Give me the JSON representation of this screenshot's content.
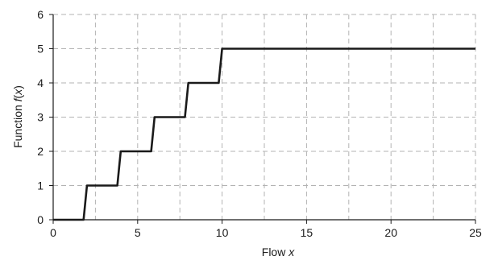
{
  "chart_data": {
    "type": "line",
    "xlabel": "Flow x",
    "ylabel": "Function f(x)",
    "xlabel_parts": {
      "text": "Flow ",
      "var": "x"
    },
    "ylabel_parts": {
      "text": "Function ",
      "var": "f",
      "paren_open": "(",
      "arg": "x",
      "paren_close": ")"
    },
    "xlim": [
      0,
      25
    ],
    "ylim": [
      0,
      6
    ],
    "xticks": [
      0,
      5,
      10,
      15,
      20,
      25
    ],
    "yticks": [
      0,
      1,
      2,
      3,
      4,
      5,
      6
    ],
    "x_grid": [
      0,
      2.5,
      5,
      7.5,
      10,
      12.5,
      15,
      17.5,
      20,
      22.5,
      25
    ],
    "grid": true,
    "grid_style": "dashed",
    "line_color": "#1a1a1a",
    "grid_color": "#b3b3b3",
    "series": [
      {
        "x": [
          0,
          1.8,
          2.0,
          3.8,
          4.0,
          5.8,
          6.0,
          7.8,
          8.0,
          9.8,
          10.0,
          25
        ],
        "y": [
          0,
          0,
          1,
          1,
          2,
          2,
          3,
          3,
          4,
          4,
          5,
          5
        ]
      }
    ]
  }
}
